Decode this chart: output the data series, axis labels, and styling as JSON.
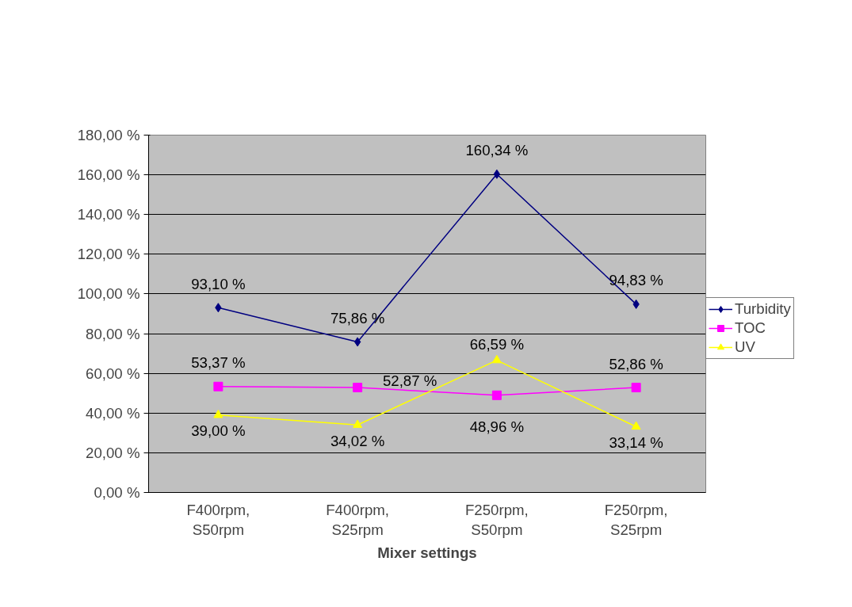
{
  "chart_data": {
    "type": "line",
    "xlabel": "Mixer settings",
    "categories": [
      "F400rpm,\nS50rpm",
      "F400rpm,\nS25rpm",
      "F250rpm,\nS50rpm",
      "F250rpm,\nS25rpm"
    ],
    "series": [
      {
        "name": "Turbidity",
        "color": "#000080",
        "marker": "diamond",
        "values": [
          93.1,
          75.86,
          160.34,
          94.83
        ],
        "value_labels": [
          "93,10 %",
          "75,86 %",
          "160,34 %",
          "94,83 %"
        ]
      },
      {
        "name": "TOC",
        "color": "#ff00ff",
        "marker": "square",
        "values": [
          53.37,
          52.87,
          48.96,
          52.86
        ],
        "value_labels": [
          "53,37 %",
          "52,87 %",
          "48,96 %",
          "52,86 %"
        ]
      },
      {
        "name": "UV",
        "color": "#ffff00",
        "marker": "triangle",
        "values": [
          39.0,
          34.02,
          66.59,
          33.14
        ],
        "value_labels": [
          "39,00 %",
          "34,02 %",
          "66,59 %",
          "33,14 %"
        ]
      }
    ],
    "ylim": [
      0,
      180
    ],
    "yticks": [
      {
        "value": 0,
        "label": "0,00 %"
      },
      {
        "value": 20,
        "label": "20,00 %"
      },
      {
        "value": 40,
        "label": "40,00 %"
      },
      {
        "value": 60,
        "label": "60,00 %"
      },
      {
        "value": 80,
        "label": "80,00 %"
      },
      {
        "value": 100,
        "label": "100,00 %"
      },
      {
        "value": 120,
        "label": "120,00 %"
      },
      {
        "value": 140,
        "label": "140,00 %"
      },
      {
        "value": 160,
        "label": "160,00 %"
      },
      {
        "value": 180,
        "label": "180,00 %"
      }
    ],
    "grid": "y",
    "legend": "right"
  }
}
